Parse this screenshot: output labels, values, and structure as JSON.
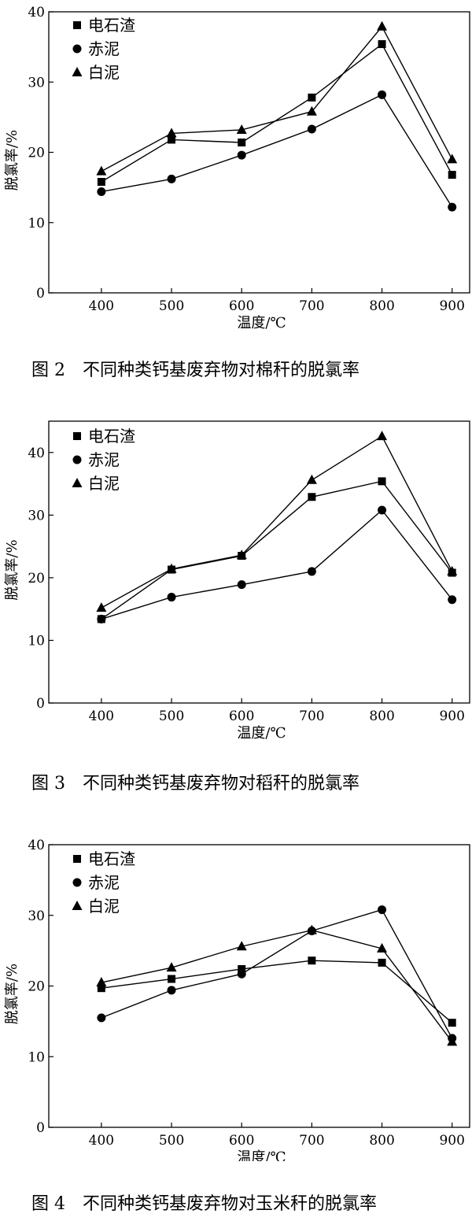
{
  "chart_data": [
    {
      "type": "line",
      "caption": "图 2　不同种类钙基废弃物对棉秆的脱氯率",
      "xlabel": "温度/℃",
      "ylabel": "脱氯率/%",
      "x": [
        400,
        500,
        600,
        700,
        800,
        900
      ],
      "xlim": [
        325,
        925
      ],
      "ylim": [
        0,
        40
      ],
      "yticks": [
        0,
        10,
        20,
        30,
        40
      ],
      "legend": "top-left",
      "grid": false,
      "series": [
        {
          "name": "电石渣",
          "marker": "square",
          "values": [
            15.8,
            21.8,
            21.4,
            27.8,
            35.4,
            16.8
          ]
        },
        {
          "name": "赤泥",
          "marker": "circle",
          "values": [
            14.4,
            16.2,
            19.6,
            23.3,
            28.2,
            12.2
          ]
        },
        {
          "name": "白泥",
          "marker": "triangle",
          "values": [
            17.3,
            22.7,
            23.2,
            25.8,
            37.9,
            19.0
          ]
        }
      ]
    },
    {
      "type": "line",
      "caption": "图 3　不同种类钙基废弃物对稻秆的脱氯率",
      "xlabel": "温度/℃",
      "ylabel": "脱氯率/%",
      "x": [
        400,
        500,
        600,
        700,
        800,
        900
      ],
      "xlim": [
        325,
        925
      ],
      "ylim": [
        0,
        45
      ],
      "yticks": [
        0,
        10,
        20,
        30,
        40
      ],
      "legend": "top-left",
      "grid": false,
      "series": [
        {
          "name": "电石渣",
          "marker": "square",
          "values": [
            13.4,
            21.3,
            23.5,
            32.9,
            35.4,
            20.8
          ]
        },
        {
          "name": "赤泥",
          "marker": "circle",
          "values": [
            13.4,
            16.9,
            18.9,
            21.0,
            30.8,
            16.5
          ]
        },
        {
          "name": "白泥",
          "marker": "triangle",
          "values": [
            15.2,
            21.4,
            23.6,
            35.6,
            42.6,
            21.0
          ]
        }
      ]
    },
    {
      "type": "line",
      "caption": "图 4　不同种类钙基废弃物对玉米秆的脱氯率",
      "xlabel": "温度/℃",
      "ylabel": "脱氯率/%",
      "x": [
        400,
        500,
        600,
        700,
        800,
        900
      ],
      "xlim": [
        325,
        925
      ],
      "ylim": [
        0,
        40
      ],
      "yticks": [
        0,
        10,
        20,
        30,
        40
      ],
      "legend": "top-left",
      "grid": false,
      "series": [
        {
          "name": "电石渣",
          "marker": "square",
          "values": [
            19.7,
            21.0,
            22.4,
            23.6,
            23.3,
            14.8
          ]
        },
        {
          "name": "赤泥",
          "marker": "circle",
          "values": [
            15.5,
            19.4,
            21.7,
            27.8,
            30.8,
            12.6
          ]
        },
        {
          "name": "白泥",
          "marker": "triangle",
          "values": [
            20.5,
            22.6,
            25.6,
            27.9,
            25.3,
            12.1
          ]
        }
      ]
    }
  ]
}
